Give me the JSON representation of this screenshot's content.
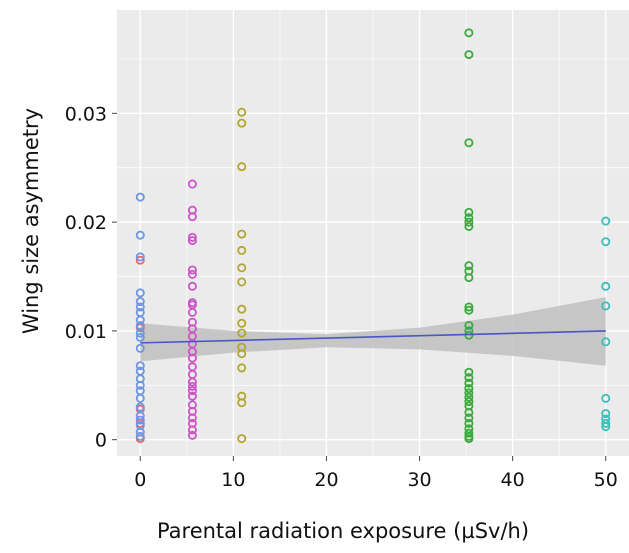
{
  "chart_data": {
    "type": "scatter",
    "title": "",
    "xlabel": "Parental radiation exposure (µSv/h)",
    "ylabel": "Wing size asymmetry",
    "xlim": [
      -2.5,
      52.5
    ],
    "ylim": [
      -0.0015,
      0.0395
    ],
    "x_ticks": [
      0,
      10,
      20,
      30,
      40,
      50
    ],
    "x_tick_labels": [
      "0",
      "10",
      "20",
      "30",
      "40",
      "50"
    ],
    "y_ticks": [
      0,
      0.01,
      0.02,
      0.03
    ],
    "y_tick_labels": [
      "0",
      "0.01",
      "0.02",
      "0.03"
    ],
    "grid": true,
    "legend": "none",
    "background_color": "#ebebeb",
    "grid_color": "#ffffff",
    "marker": "open-circle",
    "series": [
      {
        "color": "#e8666b",
        "x": [
          0,
          0,
          0,
          0,
          0
        ],
        "y": [
          0.0165,
          0.0103,
          0.0028,
          0.0015,
          0.0001
        ]
      },
      {
        "color": "#6f95e3",
        "x": [
          0,
          0,
          0,
          0,
          0,
          0,
          0,
          0,
          0,
          0,
          0,
          0,
          0,
          0,
          0,
          0,
          0,
          0,
          0,
          0,
          0,
          0,
          0,
          0
        ],
        "y": [
          0.0223,
          0.0188,
          0.0168,
          0.0135,
          0.0127,
          0.0122,
          0.0117,
          0.011,
          0.0105,
          0.0098,
          0.0094,
          0.0084,
          0.0068,
          0.0063,
          0.0056,
          0.005,
          0.0045,
          0.0038,
          0.003,
          0.0022,
          0.0018,
          0.0013,
          0.0007,
          0.0003
        ]
      },
      {
        "color": "#cc55c8",
        "x": [
          5.6,
          5.6,
          5.6,
          5.6,
          5.6,
          5.6,
          5.6,
          5.6,
          5.6,
          5.6,
          5.6,
          5.6,
          5.6,
          5.6,
          5.6,
          5.6,
          5.6,
          5.6,
          5.6,
          5.6,
          5.6,
          5.6,
          5.6,
          5.6,
          5.6,
          5.6,
          5.6,
          5.6,
          5.6
        ],
        "y": [
          0.0235,
          0.0211,
          0.0205,
          0.0186,
          0.0183,
          0.0156,
          0.0152,
          0.0141,
          0.0126,
          0.0124,
          0.0117,
          0.0108,
          0.0102,
          0.0095,
          0.0088,
          0.0081,
          0.0075,
          0.0067,
          0.006,
          0.0053,
          0.0049,
          0.0045,
          0.004,
          0.0032,
          0.0026,
          0.002,
          0.0015,
          0.0009,
          0.0004
        ]
      },
      {
        "color": "#b5a52d",
        "x": [
          10.9,
          10.9,
          10.9,
          10.9,
          10.9,
          10.9,
          10.9,
          10.9,
          10.9,
          10.9,
          10.9,
          10.9,
          10.9,
          10.9,
          10.9,
          10.9
        ],
        "y": [
          0.0301,
          0.0291,
          0.0251,
          0.0189,
          0.0174,
          0.0158,
          0.0145,
          0.012,
          0.0107,
          0.0098,
          0.0085,
          0.0079,
          0.0066,
          0.004,
          0.0034,
          0.0001
        ]
      },
      {
        "color": "#3aaa3a",
        "x": [
          35.3,
          35.3,
          35.3,
          35.3,
          35.3,
          35.3,
          35.3,
          35.3,
          35.3,
          35.3,
          35.3,
          35.3,
          35.3,
          35.3,
          35.3,
          35.3,
          35.3,
          35.3,
          35.3,
          35.3,
          35.3,
          35.3,
          35.3,
          35.3,
          35.3,
          35.3,
          35.3,
          35.3,
          35.3,
          35.3
        ],
        "y": [
          0.0374,
          0.0354,
          0.0273,
          0.0209,
          0.0204,
          0.02,
          0.0196,
          0.016,
          0.0155,
          0.0149,
          0.0122,
          0.0119,
          0.0105,
          0.01,
          0.0096,
          0.0062,
          0.0057,
          0.0052,
          0.0047,
          0.0043,
          0.0039,
          0.0035,
          0.0031,
          0.0025,
          0.002,
          0.0015,
          0.001,
          0.0006,
          0.0003,
          0.0001
        ]
      },
      {
        "color": "#3dbdbd",
        "x": [
          50,
          50,
          50,
          50,
          50,
          50,
          50,
          50,
          50,
          50
        ],
        "y": [
          0.0201,
          0.0182,
          0.0141,
          0.0123,
          0.009,
          0.0038,
          0.0024,
          0.0019,
          0.0015,
          0.0012
        ]
      }
    ],
    "trend_line": {
      "type": "linear-fit",
      "color": "#4a55c8",
      "x": [
        0,
        50
      ],
      "y": [
        0.0089,
        0.01
      ],
      "confidence_band": {
        "color": "#bfbfbf",
        "x": [
          0,
          10,
          20,
          30,
          40,
          50
        ],
        "lower": [
          0.0072,
          0.008,
          0.0085,
          0.0083,
          0.0077,
          0.0068
        ],
        "upper": [
          0.0107,
          0.01,
          0.0097,
          0.0103,
          0.0115,
          0.0131
        ]
      }
    }
  }
}
